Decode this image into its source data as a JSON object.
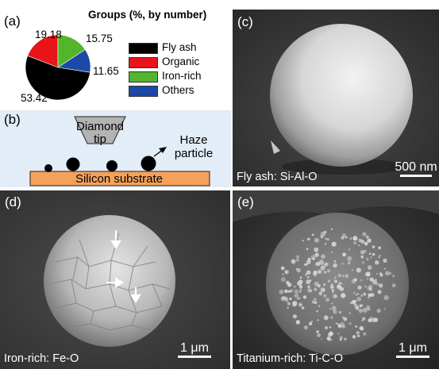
{
  "panels": {
    "a": {
      "label": "(a)",
      "title": "Groups (%, by number)",
      "legend": [
        {
          "name": "Fly ash",
          "color": "#000000"
        },
        {
          "name": "Organic",
          "color": "#e8141a"
        },
        {
          "name": "Iron-rich",
          "color": "#52b52b"
        },
        {
          "name": "Others",
          "color": "#1b49a8"
        }
      ]
    },
    "b": {
      "label": "(b)",
      "tip_label_line1": "Diamond",
      "tip_label_line2": "tip",
      "particle_label_line1": "Haze",
      "particle_label_line2": "particle",
      "substrate_label": "Silicon substrate",
      "substrate_color": "#f4a25b",
      "tip_color": "#b3b3b3"
    },
    "c": {
      "label": "(c)",
      "caption": "Fly ash: Si-Al-O",
      "scale": "500 nm"
    },
    "d": {
      "label": "(d)",
      "caption": "Iron-rich: Fe-O",
      "scale": "1 μm"
    },
    "e": {
      "label": "(e)",
      "caption": "Titanium-rich: Ti-C-O",
      "scale": "1 μm"
    }
  },
  "chart_data": {
    "type": "pie",
    "title": "Groups (%, by number)",
    "categories": [
      "Fly ash",
      "Organic",
      "Iron-rich",
      "Others"
    ],
    "values": [
      53.42,
      19.18,
      15.75,
      11.65
    ],
    "value_labels": [
      "53.42",
      "19.18",
      "15.75",
      "11.65"
    ],
    "colors": [
      "#000000",
      "#e8141a",
      "#52b52b",
      "#1b49a8"
    ],
    "legend_position": "right"
  }
}
